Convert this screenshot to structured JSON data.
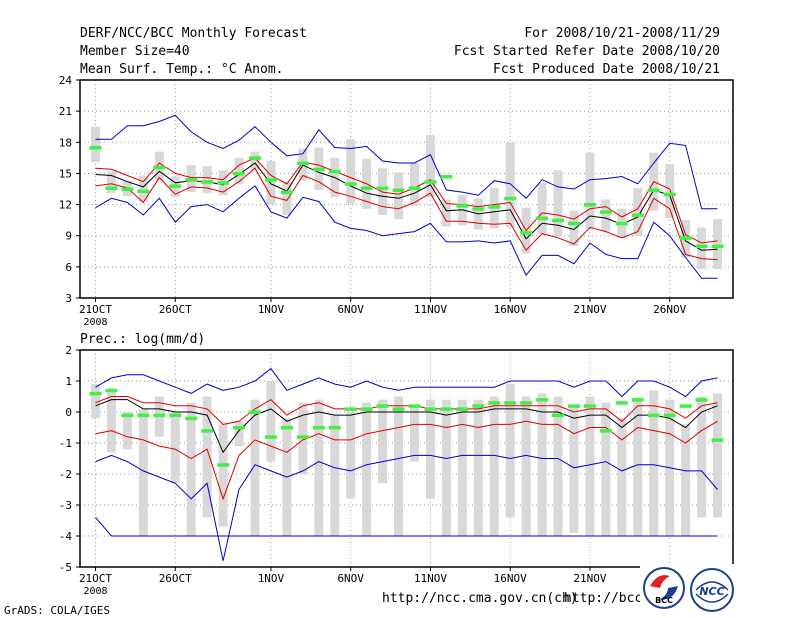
{
  "header": {
    "title": "DERF/NCC/BCC Monthly Forecast",
    "member_size": "Member Size=40",
    "variable": "Mean Surf. Temp.: °C Anom.",
    "period": "For 2008/10/21-2008/11/29",
    "started": "Fcst Started Refer Date 2008/10/20",
    "produced": "Fcst Produced Date 2008/10/21"
  },
  "footer": {
    "grads": "GrADS: COLA/IGES",
    "url1": "http://ncc.cma.gov.cn(ch)",
    "url2": "http://bcc.c",
    "logo1_text": "BCC",
    "logo2_text": "NCC"
  },
  "colors": {
    "envelope": "#0000cc",
    "spread": "#dd0000",
    "mean": "#000000",
    "box": "#d8d8d8",
    "median": "#44ee44",
    "grid": "#999999"
  },
  "chart_data": [
    {
      "type": "line",
      "title": "Mean Surf. Temp.: °C Anom.",
      "ylim": [
        3,
        24
      ],
      "yticks": [
        3,
        6,
        9,
        12,
        15,
        18,
        21,
        24
      ],
      "xtick_labels": [
        "21OCT",
        "26OCT",
        "1NOV",
        "6NOV",
        "11NOV",
        "16NOV",
        "21NOV",
        "26NOV"
      ],
      "xtick_index": [
        0,
        5,
        11,
        16,
        21,
        26,
        31,
        36
      ],
      "year_label": "2008",
      "days": 40,
      "series": [
        {
          "name": "max",
          "values": [
            18.3,
            18.3,
            19.6,
            19.6,
            20.0,
            20.6,
            19.0,
            18.0,
            17.4,
            18.2,
            19.5,
            18.0,
            16.7,
            16.9,
            19.2,
            17.5,
            17.4,
            17.6,
            16.2,
            16.0,
            16.0,
            16.8,
            13.4,
            13.2,
            12.9,
            14.3,
            14.0,
            12.6,
            14.4,
            13.7,
            13.5,
            14.4,
            14.5,
            14.7,
            14.0,
            16.0,
            17.9,
            17.7,
            11.6,
            11.6
          ]
        },
        {
          "name": "upper",
          "values": [
            15.5,
            15.4,
            14.8,
            14.2,
            16.0,
            15.0,
            14.6,
            14.6,
            14.4,
            15.8,
            16.5,
            14.8,
            14.0,
            16.1,
            15.8,
            15.2,
            14.6,
            14.0,
            13.2,
            13.0,
            13.6,
            14.4,
            12.1,
            12.0,
            11.8,
            12.0,
            12.2,
            9.5,
            11.2,
            11.0,
            10.6,
            11.6,
            11.8,
            10.8,
            11.6,
            14.2,
            13.5,
            9.1,
            8.3,
            8.5
          ]
        },
        {
          "name": "mean",
          "values": [
            14.9,
            14.8,
            14.2,
            13.7,
            15.2,
            14.1,
            14.3,
            14.2,
            13.9,
            14.9,
            16.0,
            14.0,
            13.3,
            15.8,
            15.1,
            14.6,
            13.8,
            13.1,
            12.8,
            12.6,
            13.1,
            13.9,
            11.4,
            11.5,
            11.1,
            11.3,
            11.5,
            8.7,
            10.2,
            10.0,
            9.6,
            10.9,
            10.7,
            10.1,
            10.8,
            13.4,
            12.9,
            8.5,
            7.6,
            7.7
          ]
        },
        {
          "name": "lower",
          "values": [
            13.8,
            14.0,
            13.6,
            12.2,
            14.6,
            13.0,
            13.7,
            13.6,
            13.2,
            14.2,
            15.5,
            12.8,
            12.4,
            14.8,
            14.2,
            13.2,
            12.8,
            12.3,
            11.8,
            11.6,
            12.2,
            13.1,
            10.4,
            10.4,
            10.2,
            10.1,
            10.2,
            7.6,
            9.2,
            8.8,
            8.2,
            9.8,
            9.4,
            8.8,
            9.4,
            12.6,
            11.6,
            7.2,
            6.8,
            6.7
          ]
        },
        {
          "name": "min",
          "values": [
            11.7,
            12.6,
            12.2,
            11.0,
            12.6,
            10.3,
            11.8,
            12.0,
            11.3,
            12.6,
            13.8,
            11.3,
            10.7,
            12.7,
            12.3,
            10.3,
            9.7,
            9.5,
            9.0,
            9.2,
            9.4,
            10.2,
            8.4,
            8.4,
            8.5,
            8.3,
            8.5,
            5.2,
            7.1,
            7.1,
            6.3,
            8.3,
            7.2,
            6.8,
            6.8,
            10.3,
            9.0,
            6.9,
            4.9,
            4.9
          ]
        }
      ],
      "box_low": [
        16.1,
        13.1,
        12.8,
        12.3,
        14.3,
        12.7,
        13.2,
        13.1,
        12.9,
        14.0,
        15.4,
        12.0,
        11.0,
        14.3,
        13.4,
        12.7,
        12.1,
        11.6,
        11.0,
        10.6,
        11.9,
        12.7,
        9.9,
        10.0,
        9.6,
        9.7,
        9.8,
        7.3,
        9.2,
        8.9,
        8.0,
        9.7,
        9.4,
        8.8,
        9.0,
        11.4,
        10.7,
        6.9,
        5.8,
        5.8
      ],
      "box_high": [
        19.5,
        15.2,
        14.3,
        14.8,
        17.1,
        14.7,
        15.8,
        15.7,
        15.3,
        16.5,
        17.1,
        16.2,
        14.2,
        17.4,
        17.5,
        16.5,
        18.3,
        16.4,
        15.5,
        15.1,
        16.0,
        18.7,
        12.5,
        12.9,
        12.6,
        13.6,
        18.0,
        11.7,
        14.1,
        15.3,
        11.4,
        17.0,
        12.5,
        11.6,
        13.6,
        17.0,
        15.9,
        10.5,
        9.8,
        10.6
      ],
      "median": [
        17.5,
        13.6,
        13.5,
        13.3,
        15.6,
        13.8,
        14.4,
        14.2,
        14.1,
        15.0,
        16.5,
        14.4,
        13.2,
        16.0,
        15.4,
        15.2,
        14.0,
        13.6,
        13.6,
        13.4,
        13.6,
        14.2,
        14.7,
        11.9,
        11.6,
        11.8,
        12.6,
        9.3,
        10.7,
        10.5,
        10.2,
        12.0,
        11.3,
        10.2,
        11.0,
        13.4,
        13.0,
        8.8,
        8.0,
        8.0
      ]
    },
    {
      "type": "line",
      "title": "Prec.: log(mm/d)",
      "ylim": [
        -5,
        2
      ],
      "yticks": [
        -5,
        -4,
        -3,
        -2,
        -1,
        0,
        1,
        2
      ],
      "xtick_labels": [
        "21OCT",
        "26OCT",
        "1NOV",
        "6NOV",
        "11NOV",
        "16NOV",
        "21NOV",
        "26NOV"
      ],
      "xtick_index": [
        0,
        5,
        11,
        16,
        21,
        26,
        31,
        36
      ],
      "year_label": "2008",
      "days": 40,
      "series": [
        {
          "name": "max",
          "values": [
            0.8,
            1.1,
            1.2,
            1.2,
            1.0,
            0.8,
            0.6,
            0.9,
            0.7,
            0.8,
            1.0,
            1.4,
            0.7,
            0.9,
            1.1,
            0.9,
            0.8,
            1.0,
            0.8,
            0.7,
            0.8,
            0.8,
            0.8,
            0.8,
            0.8,
            0.8,
            1.0,
            1.0,
            1.0,
            1.0,
            0.8,
            1.0,
            1.0,
            0.5,
            1.0,
            1.0,
            0.8,
            0.5,
            1.0,
            1.1
          ]
        },
        {
          "name": "upper",
          "values": [
            0.3,
            0.5,
            0.5,
            0.3,
            0.3,
            0.2,
            0.2,
            0.1,
            -0.4,
            -0.3,
            0.1,
            0.4,
            -0.1,
            0.2,
            0.3,
            0.1,
            0.1,
            0.1,
            0.2,
            0.2,
            0.2,
            0.1,
            0.1,
            0.1,
            0.1,
            0.2,
            0.2,
            0.2,
            0.2,
            0.2,
            0.0,
            0.1,
            0.1,
            -0.3,
            0.2,
            0.2,
            0.1,
            -0.2,
            0.2,
            0.3
          ]
        },
        {
          "name": "mean",
          "values": [
            0.2,
            0.4,
            0.4,
            0.1,
            0.1,
            0.0,
            0.0,
            -0.1,
            -1.3,
            -0.6,
            -0.1,
            0.1,
            -0.3,
            -0.1,
            0.0,
            -0.1,
            -0.1,
            0.0,
            0.0,
            0.0,
            0.0,
            0.0,
            -0.1,
            0.0,
            0.0,
            0.1,
            0.1,
            0.1,
            0.0,
            0.0,
            -0.2,
            -0.1,
            -0.1,
            -0.5,
            -0.1,
            -0.1,
            -0.2,
            -0.5,
            0.0,
            0.2
          ]
        },
        {
          "name": "lower",
          "values": [
            -0.7,
            -0.6,
            -0.8,
            -0.9,
            -1.1,
            -1.2,
            -1.5,
            -1.2,
            -2.8,
            -1.4,
            -0.9,
            -1.1,
            -1.3,
            -0.9,
            -0.7,
            -0.9,
            -0.9,
            -0.7,
            -0.6,
            -0.5,
            -0.4,
            -0.4,
            -0.5,
            -0.4,
            -0.5,
            -0.4,
            -0.4,
            -0.3,
            -0.4,
            -0.4,
            -0.7,
            -0.5,
            -0.5,
            -0.9,
            -0.5,
            -0.6,
            -0.7,
            -1.0,
            -0.6,
            -0.3
          ]
        },
        {
          "name": "min",
          "values": [
            -1.6,
            -1.4,
            -1.6,
            -1.9,
            -2.1,
            -2.3,
            -2.8,
            -2.3,
            -4.8,
            -2.5,
            -1.7,
            -1.9,
            -2.1,
            -1.9,
            -1.6,
            -1.8,
            -1.9,
            -1.7,
            -1.6,
            -1.5,
            -1.4,
            -1.4,
            -1.5,
            -1.4,
            -1.4,
            -1.4,
            -1.5,
            -1.4,
            -1.5,
            -1.5,
            -1.8,
            -1.7,
            -1.6,
            -1.9,
            -1.7,
            -1.7,
            -1.8,
            -1.9,
            -1.9,
            -2.5
          ]
        },
        {
          "name": "floor",
          "values": [
            -3.4,
            -4.0,
            -4.0,
            -4.0,
            -4.0,
            -4.0,
            -4.0,
            -4.0,
            -4.0,
            -4.0,
            -4.0,
            -4.0,
            -4.0,
            -4.0,
            -4.0,
            -4.0,
            -4.0,
            -4.0,
            -4.0,
            -4.0,
            -4.0,
            -4.0,
            -4.0,
            -4.0,
            -4.0,
            -4.0,
            -4.0,
            -4.0,
            -4.0,
            -4.0,
            -4.0,
            -4.0,
            -4.0,
            -4.0,
            -4.0,
            -4.0,
            -4.0,
            -4.0,
            -4.0,
            -4.0
          ]
        }
      ],
      "box_low": [
        -0.2,
        -1.3,
        -1.2,
        -4.0,
        -0.8,
        -2.3,
        -4.0,
        -3.4,
        -3.7,
        -1.1,
        -4.0,
        -1.6,
        -4.0,
        -2.0,
        -4.0,
        -4.0,
        -2.8,
        -4.0,
        -2.3,
        -4.0,
        -1.6,
        -2.8,
        -4.0,
        -4.0,
        -4.0,
        -4.0,
        -3.4,
        -4.0,
        -4.0,
        -4.0,
        -3.9,
        -4.0,
        -4.0,
        -4.0,
        -4.0,
        -4.0,
        -4.0,
        -4.0,
        -3.4,
        -3.4
      ],
      "box_high": [
        0.9,
        0.7,
        0.0,
        0.1,
        0.5,
        0.0,
        0.3,
        0.5,
        -0.4,
        -0.3,
        0.4,
        1.0,
        -0.2,
        0.3,
        0.4,
        -0.1,
        0.0,
        0.3,
        0.4,
        0.5,
        0.2,
        0.4,
        0.4,
        0.4,
        0.4,
        0.5,
        0.9,
        0.5,
        0.6,
        0.5,
        0.2,
        0.5,
        0.3,
        -0.2,
        0.4,
        0.7,
        0.4,
        -0.4,
        0.5,
        0.6
      ],
      "median": [
        0.6,
        0.7,
        -0.1,
        -0.1,
        -0.1,
        -0.1,
        -0.2,
        -0.6,
        -1.7,
        -0.5,
        0.0,
        -0.8,
        -0.5,
        -0.8,
        -0.5,
        -0.5,
        0.1,
        0.1,
        0.2,
        0.1,
        0.2,
        0.1,
        0.1,
        0.1,
        0.2,
        0.3,
        0.3,
        0.3,
        0.4,
        -0.1,
        0.2,
        0.2,
        -0.6,
        0.3,
        0.4,
        -0.1,
        -0.1,
        0.2,
        0.4,
        -0.9
      ]
    }
  ]
}
